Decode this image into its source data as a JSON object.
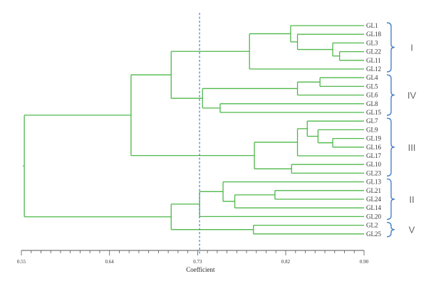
{
  "chart_data": {
    "type": "dendrogram",
    "xlabel": "Coefficient",
    "xlim": [
      0.55,
      0.9
    ],
    "ticks": [
      0.55,
      0.64,
      0.73,
      0.82,
      0.9
    ],
    "tick_labels": [
      "0.55",
      "0.64",
      "0.73",
      "0.82",
      "0.90"
    ],
    "cut_line": 0.732,
    "leaves": [
      "GL1",
      "GL18",
      "GL3",
      "GL22",
      "GL11",
      "GL12",
      "GL4",
      "GL5",
      "GL6",
      "GL8",
      "GL15",
      "GL7",
      "GL9",
      "GL19",
      "GL16",
      "GL17",
      "GL10",
      "GL23",
      "GL13",
      "GL21",
      "GL24",
      "GL14",
      "GL20",
      "GL2",
      "GL25"
    ],
    "merges": [
      {
        "id": "a",
        "children": [
          "GL22",
          "GL11"
        ],
        "height": 0.875
      },
      {
        "id": "b",
        "children": [
          "GL3",
          "a"
        ],
        "height": 0.868
      },
      {
        "id": "c",
        "children": [
          "GL18",
          "b"
        ],
        "height": 0.832
      },
      {
        "id": "d",
        "children": [
          "GL1",
          "c"
        ],
        "height": 0.825
      },
      {
        "id": "e",
        "children": [
          "d",
          "GL12"
        ],
        "height": 0.783
      },
      {
        "id": "f",
        "children": [
          "GL4",
          "GL5"
        ],
        "height": 0.855
      },
      {
        "id": "g",
        "children": [
          "f",
          "GL6"
        ],
        "height": 0.832
      },
      {
        "id": "h",
        "children": [
          "GL8",
          "GL15"
        ],
        "height": 0.753
      },
      {
        "id": "i",
        "children": [
          "g",
          "h"
        ],
        "height": 0.735
      },
      {
        "id": "j",
        "children": [
          "e",
          "i"
        ],
        "height": 0.703
      },
      {
        "id": "k",
        "children": [
          "GL19",
          "GL16"
        ],
        "height": 0.868
      },
      {
        "id": "l",
        "children": [
          "GL9",
          "k"
        ],
        "height": 0.853
      },
      {
        "id": "m",
        "children": [
          "GL7",
          "l"
        ],
        "height": 0.842
      },
      {
        "id": "n",
        "children": [
          "m",
          "GL17"
        ],
        "height": 0.832
      },
      {
        "id": "o",
        "children": [
          "GL10",
          "GL23"
        ],
        "height": 0.826
      },
      {
        "id": "p",
        "children": [
          "n",
          "o"
        ],
        "height": 0.788
      },
      {
        "id": "q",
        "children": [
          "j",
          "p"
        ],
        "height": 0.662
      },
      {
        "id": "r",
        "children": [
          "GL21",
          "GL24"
        ],
        "height": 0.809
      },
      {
        "id": "s",
        "children": [
          "r",
          "GL14"
        ],
        "height": 0.768
      },
      {
        "id": "t",
        "children": [
          "GL13",
          "s"
        ],
        "height": 0.756
      },
      {
        "id": "u",
        "children": [
          "t",
          "GL20"
        ],
        "height": 0.732
      },
      {
        "id": "v",
        "children": [
          "GL2",
          "GL25"
        ],
        "height": 0.787
      },
      {
        "id": "w",
        "children": [
          "u",
          "v"
        ],
        "height": 0.703
      },
      {
        "id": "x",
        "children": [
          "q",
          "w"
        ],
        "height": 0.553
      }
    ],
    "clusters": [
      {
        "label": "I",
        "first": "GL1",
        "last": "GL12"
      },
      {
        "label": "IV",
        "first": "GL4",
        "last": "GL15"
      },
      {
        "label": "III",
        "first": "GL7",
        "last": "GL23"
      },
      {
        "label": "II",
        "first": "GL13",
        "last": "GL20"
      },
      {
        "label": "V",
        "first": "GL2",
        "last": "GL25"
      }
    ]
  },
  "colors": {
    "branch": "#4db848",
    "cut_line": "#3d6fd1",
    "bracket": "#4a82c4",
    "axis": "#555555"
  }
}
